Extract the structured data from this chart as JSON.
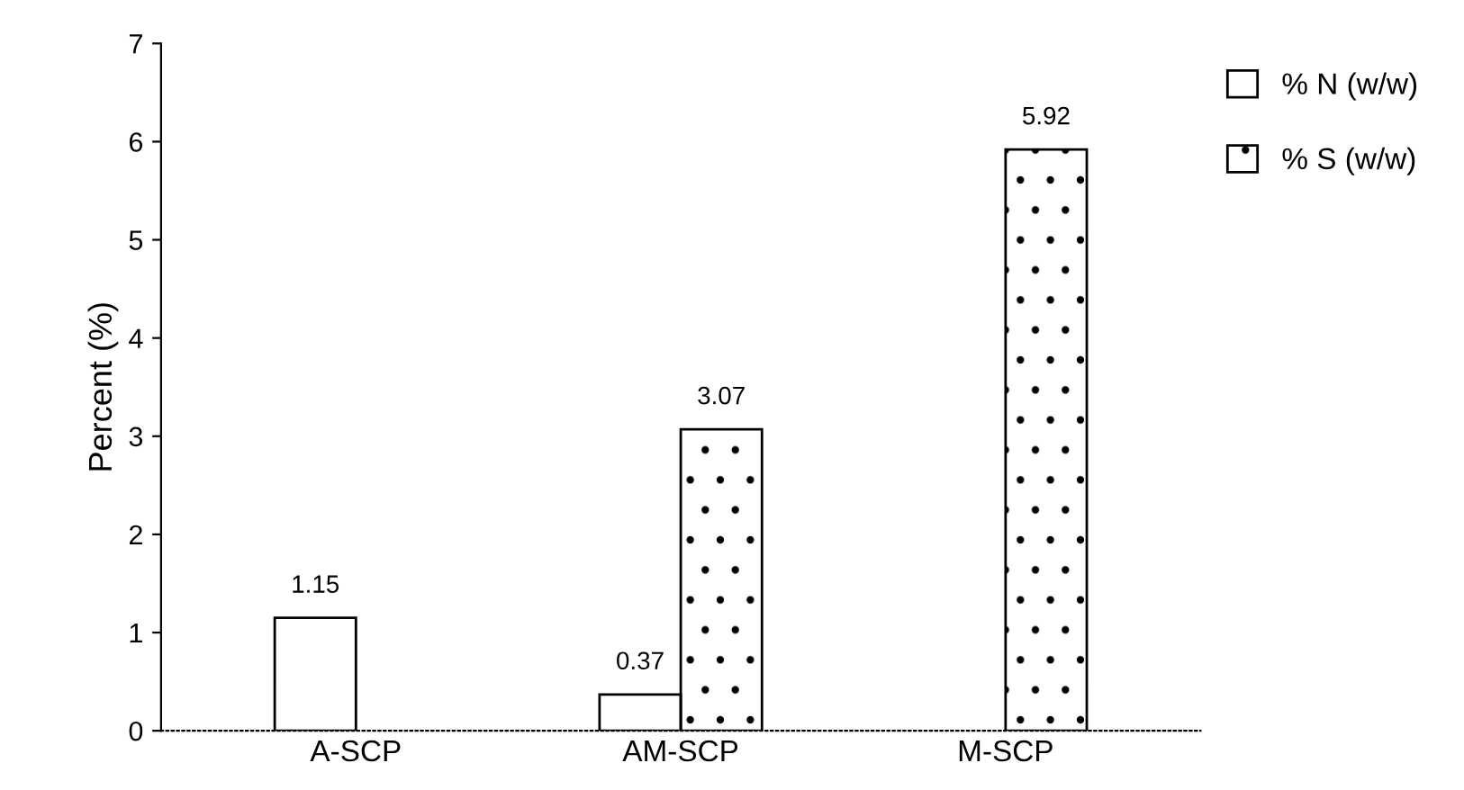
{
  "chart_data": {
    "type": "bar",
    "ylabel": "Percent (%)",
    "categories": [
      "A-SCP",
      "AM-SCP",
      "M-SCP"
    ],
    "series": [
      {
        "name": "% N (w/w)",
        "color": "#ffffff",
        "values": [
          1.15,
          0.37,
          null
        ]
      },
      {
        "name": "% S (w/w)",
        "color": "#000000",
        "values": [
          null,
          3.07,
          5.92
        ]
      }
    ],
    "ylim": [
      0,
      7
    ],
    "yticks": [
      0,
      1,
      2,
      3,
      4,
      5,
      6,
      7
    ],
    "grid": false,
    "legend": "top right",
    "data_labels": true
  }
}
